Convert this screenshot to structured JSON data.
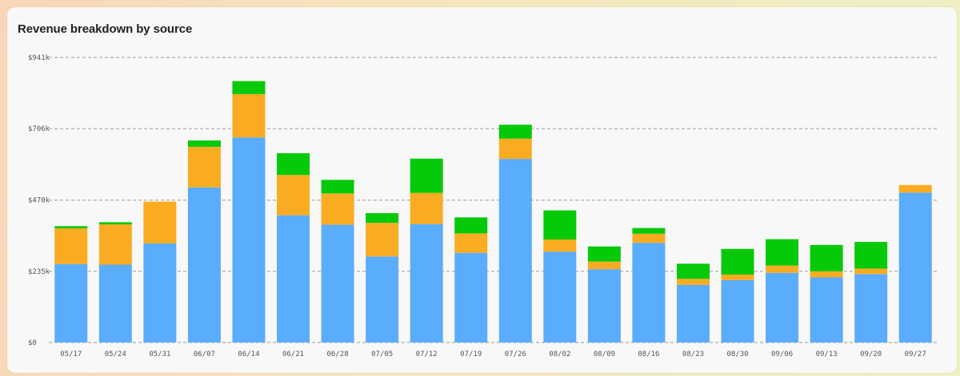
{
  "card": {
    "title": "Revenue breakdown by source"
  },
  "colors": {
    "series": [
      "#5aacfc",
      "#f9ac21",
      "#06c90a"
    ],
    "grid": "#9a9a9a",
    "background": "#f8f8f8"
  },
  "chart_data": {
    "type": "bar",
    "stacked": true,
    "title": "Revenue breakdown by source",
    "xlabel": "",
    "ylabel": "",
    "ylim": [
      0,
      941000
    ],
    "yticks": [
      0,
      235000,
      470000,
      706000,
      941000
    ],
    "ytick_labels": [
      "$0",
      "$235k",
      "$470k",
      "$706k",
      "$941k"
    ],
    "grid": true,
    "legend": "none",
    "categories": [
      "05/17",
      "05/24",
      "05/31",
      "06/07",
      "06/14",
      "06/21",
      "06/28",
      "07/05",
      "07/12",
      "07/19",
      "07/26",
      "08/02",
      "08/09",
      "08/16",
      "08/23",
      "08/30",
      "09/06",
      "09/13",
      "09/20",
      "09/27"
    ],
    "series": [
      {
        "values": [
          259000,
          257000,
          327000,
          512000,
          677000,
          420000,
          389000,
          284000,
          391000,
          296000,
          606000,
          300000,
          242000,
          329000,
          190000,
          206000,
          230000,
          215000,
          226000,
          495000
        ]
      },
      {
        "values": [
          118000,
          133000,
          138000,
          134000,
          143000,
          133000,
          103000,
          111000,
          103000,
          64000,
          67000,
          40000,
          25000,
          30000,
          20000,
          18000,
          24000,
          20000,
          18000,
          25000
        ]
      },
      {
        "values": [
          7000,
          7000,
          0,
          21000,
          43000,
          72000,
          45000,
          32000,
          113000,
          53000,
          46000,
          96000,
          50000,
          19000,
          50000,
          85000,
          87000,
          87000,
          88000,
          0
        ]
      }
    ]
  }
}
